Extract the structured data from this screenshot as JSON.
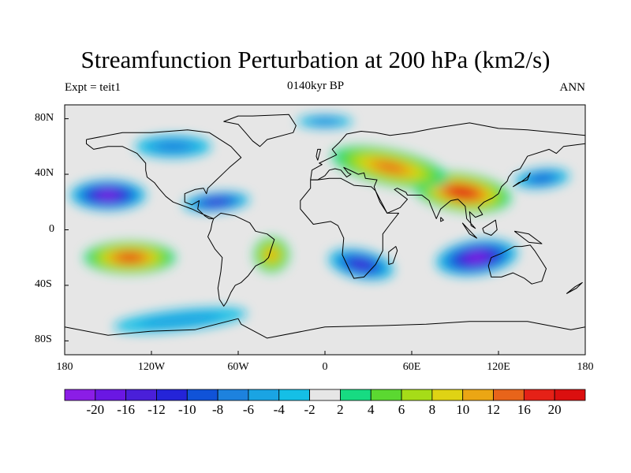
{
  "title": "Streamfunction Perturbation at 200 hPa (km2/s)",
  "subtitle_left": "Expt = teit1",
  "subtitle_center": "0140kyr BP",
  "subtitle_right": "ANN",
  "chart_data": {
    "type": "heatmap",
    "projection": "cylindrical-equidistant",
    "x_ticks": [
      "180",
      "120W",
      "60W",
      "0",
      "60E",
      "120E",
      "180"
    ],
    "x_tick_values": [
      -180,
      -120,
      -60,
      0,
      60,
      120,
      180
    ],
    "y_ticks": [
      "80N",
      "40N",
      "0",
      "40S",
      "80S"
    ],
    "y_tick_values": [
      80,
      40,
      0,
      -40,
      -80
    ],
    "xlim": [
      -180,
      180
    ],
    "ylim": [
      -90,
      90
    ],
    "colorbar": {
      "labels": [
        "-20",
        "-16",
        "-12",
        "-10",
        "-8",
        "-6",
        "-4",
        "-2",
        "2",
        "4",
        "6",
        "8",
        "10",
        "12",
        "16",
        "20"
      ],
      "levels": [
        -20,
        -16,
        -12,
        -10,
        -8,
        -6,
        -4,
        -2,
        2,
        4,
        6,
        8,
        10,
        12,
        16,
        20
      ],
      "colors": [
        "#8b1de6",
        "#6a17e3",
        "#4a1fd9",
        "#2424d8",
        "#1053d8",
        "#1d82de",
        "#1aa4e3",
        "#15bfe6",
        "#e6e6e6",
        "#17db82",
        "#5bd831",
        "#a6dc18",
        "#dfd314",
        "#eba614",
        "#e8641a",
        "#e52117",
        "#db0f0f"
      ]
    },
    "features": [
      {
        "name": "max-south-asia",
        "lon": 95,
        "lat": 27,
        "value": 20
      },
      {
        "name": "max-mid-asia",
        "lon": 45,
        "lat": 45,
        "value": 12
      },
      {
        "name": "max-south-pacific",
        "lon": -135,
        "lat": -20,
        "value": 16
      },
      {
        "name": "max-south-america",
        "lon": -37,
        "lat": -18,
        "value": 10
      },
      {
        "name": "min-north-pacific",
        "lon": -150,
        "lat": 25,
        "value": -20
      },
      {
        "name": "min-caribbean",
        "lon": -75,
        "lat": 20,
        "value": -12
      },
      {
        "name": "min-indian-ocean",
        "lon": 105,
        "lat": -20,
        "value": -20
      },
      {
        "name": "min-south-atlantic",
        "lon": 25,
        "lat": -25,
        "value": -12
      },
      {
        "name": "min-west-pacific",
        "lon": 150,
        "lat": 37,
        "value": -8
      },
      {
        "name": "min-north-america",
        "lon": -105,
        "lat": 60,
        "value": -6
      },
      {
        "name": "min-arctic",
        "lon": 0,
        "lat": 78,
        "value": -6
      },
      {
        "name": "min-southern-ocean",
        "lon": -100,
        "lat": -65,
        "value": -4
      }
    ]
  }
}
